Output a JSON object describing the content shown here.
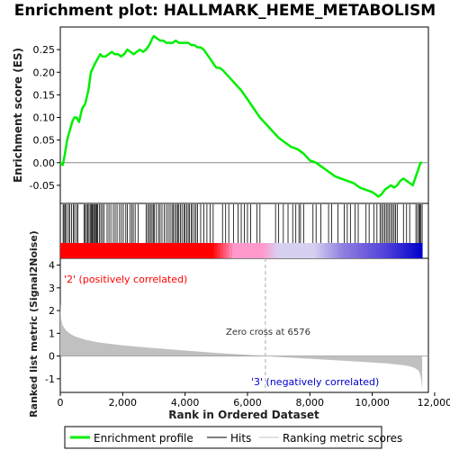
{
  "chart_data": {
    "type": "line",
    "title": "Enrichment plot: HALLMARK_HEME_METABOLISM",
    "es_panel": {
      "ylabel": "Enrichment score (ES)",
      "ylim": [
        -0.09,
        0.3
      ],
      "yticks": [
        -0.05,
        0.0,
        0.05,
        0.1,
        0.15,
        0.2,
        0.25
      ],
      "ytick_labels": [
        "-0.05",
        "0.00",
        "0.05",
        "0.10",
        "0.15",
        "0.20",
        "0.25"
      ],
      "series": [
        {
          "name": "Enrichment profile",
          "color": "#00ee00",
          "x": [
            0,
            80,
            150,
            220,
            300,
            380,
            450,
            520,
            600,
            700,
            800,
            900,
            980,
            1050,
            1120,
            1200,
            1280,
            1350,
            1450,
            1550,
            1650,
            1750,
            1850,
            1950,
            2050,
            2150,
            2250,
            2350,
            2450,
            2550,
            2650,
            2750,
            2850,
            2950,
            3000,
            3100,
            3200,
            3300,
            3400,
            3500,
            3600,
            3700,
            3800,
            3900,
            4000,
            4100,
            4200,
            4300,
            4400,
            4500,
            4600,
            4700,
            4800,
            4900,
            5000,
            5100,
            5200,
            5400,
            5600,
            5800,
            6000,
            6200,
            6400,
            6600,
            6800,
            7000,
            7200,
            7400,
            7600,
            7800,
            8000,
            8200,
            8400,
            8600,
            8800,
            9000,
            9200,
            9400,
            9600,
            9800,
            10000,
            10100,
            10200,
            10300,
            10400,
            10500,
            10600,
            10700,
            10800,
            10900,
            11000,
            11100,
            11200,
            11300,
            11400,
            11450,
            11500,
            11550,
            11600
          ],
          "values": [
            0.0,
            -0.005,
            0.02,
            0.05,
            0.07,
            0.09,
            0.1,
            0.1,
            0.09,
            0.12,
            0.13,
            0.16,
            0.2,
            0.21,
            0.22,
            0.23,
            0.24,
            0.235,
            0.235,
            0.24,
            0.245,
            0.24,
            0.24,
            0.235,
            0.24,
            0.25,
            0.245,
            0.24,
            0.245,
            0.25,
            0.245,
            0.25,
            0.26,
            0.275,
            0.28,
            0.275,
            0.27,
            0.27,
            0.265,
            0.265,
            0.265,
            0.27,
            0.265,
            0.265,
            0.265,
            0.265,
            0.26,
            0.26,
            0.255,
            0.255,
            0.25,
            0.24,
            0.23,
            0.22,
            0.21,
            0.21,
            0.205,
            0.19,
            0.175,
            0.16,
            0.14,
            0.12,
            0.1,
            0.085,
            0.07,
            0.055,
            0.045,
            0.035,
            0.03,
            0.02,
            0.005,
            0.0,
            -0.01,
            -0.02,
            -0.03,
            -0.035,
            -0.04,
            -0.045,
            -0.055,
            -0.06,
            -0.065,
            -0.07,
            -0.075,
            -0.07,
            -0.06,
            -0.055,
            -0.05,
            -0.055,
            -0.05,
            -0.04,
            -0.035,
            -0.04,
            -0.045,
            -0.05,
            -0.03,
            -0.02,
            -0.01,
            0.0,
            0.0
          ]
        }
      ]
    },
    "hits_panel": {
      "series_name": "Hits",
      "hit_ranks": [
        90,
        120,
        160,
        200,
        260,
        300,
        360,
        420,
        460,
        520,
        560,
        760,
        800,
        840,
        880,
        920,
        960,
        1000,
        1020,
        1040,
        1080,
        1100,
        1140,
        1170,
        1200,
        1250,
        1300,
        1350,
        1400,
        1500,
        1560,
        1620,
        1700,
        1760,
        1820,
        1900,
        1960,
        2020,
        2100,
        2150,
        2240,
        2290,
        2340,
        2400,
        2500,
        2750,
        2800,
        2850,
        2890,
        2940,
        2980,
        3010,
        3080,
        3150,
        3200,
        3260,
        3330,
        3400,
        3460,
        3520,
        3580,
        3620,
        3670,
        3720,
        3760,
        3800,
        3850,
        3900,
        3960,
        4000,
        4050,
        4100,
        4140,
        4200,
        4240,
        4300,
        4350,
        4400,
        4500,
        4600,
        4700,
        4800,
        4900,
        5200,
        5300,
        5400,
        5550,
        5700,
        5800,
        5900,
        6000,
        6100,
        6300,
        6400,
        6900,
        7000,
        7150,
        7300,
        7450,
        7550,
        7650,
        7700,
        7800,
        8100,
        8200,
        8350,
        8600,
        8700,
        8900,
        9100,
        9200,
        9300,
        9450,
        9550,
        9800,
        9900,
        10050,
        10150,
        10250,
        10300,
        10350,
        10400,
        10450,
        10500,
        10550,
        10600,
        10650,
        10700,
        10750,
        10800,
        11000,
        11100,
        11200,
        11400,
        11450,
        11500,
        11530,
        11560,
        11600
      ]
    },
    "metric_panel": {
      "ylabel": "Ranked list metric (Signal2Noise)",
      "ylim": [
        -1.6,
        4.3
      ],
      "yticks": [
        -1,
        0,
        1,
        2,
        3,
        4
      ],
      "ytick_labels": [
        "-1",
        "0",
        "1",
        "2",
        "3",
        "4"
      ],
      "fill_color": "#c0c0c0",
      "profile_x": [
        0,
        20,
        60,
        120,
        200,
        350,
        500,
        800,
        1200,
        2000,
        3000,
        4000,
        5000,
        6000,
        6576,
        7000,
        8000,
        9000,
        10000,
        10500,
        11000,
        11200,
        11350,
        11450,
        11500,
        11530,
        11560,
        11580,
        11600
      ],
      "profile_y": [
        2.4,
        1.7,
        1.4,
        1.25,
        1.1,
        0.95,
        0.85,
        0.72,
        0.6,
        0.47,
        0.35,
        0.24,
        0.14,
        0.05,
        0.0,
        -0.04,
        -0.12,
        -0.2,
        -0.28,
        -0.33,
        -0.4,
        -0.45,
        -0.52,
        -0.6,
        -0.68,
        -0.78,
        -0.95,
        -1.2,
        -1.45
      ],
      "zero_cross_rank": 6576,
      "zero_cross_label": "Zero cross at 6576",
      "pos_label": "'2' (positively correlated)",
      "neg_label": "'3' (negatively correlated)",
      "pos_label_color": "#ff0000",
      "neg_label_color": "#0000cc"
    },
    "xaxis": {
      "label": "Rank in Ordered Dataset",
      "xlim": [
        0,
        11800
      ],
      "xticks": [
        0,
        2000,
        4000,
        6000,
        8000,
        10000,
        12000
      ],
      "xtick_labels": [
        "0",
        "2,000",
        "4,000",
        "6,000",
        "8,000",
        "10,000",
        "12,000"
      ],
      "n_genes": 11600
    },
    "legend": {
      "placement": "bottom",
      "items": [
        {
          "label": "Enrichment profile",
          "color": "#00ee00",
          "style": "thick-line"
        },
        {
          "label": "Hits",
          "color": "#000000",
          "style": "line"
        },
        {
          "label": "Ranking metric scores",
          "color": "#c0c0c0",
          "style": "line"
        }
      ]
    },
    "colors": {
      "heat_red": "#ff0000",
      "heat_pink": "#ff99cc",
      "heat_lavender": "#d8d0f0",
      "heat_blue": "#0000cc"
    }
  }
}
